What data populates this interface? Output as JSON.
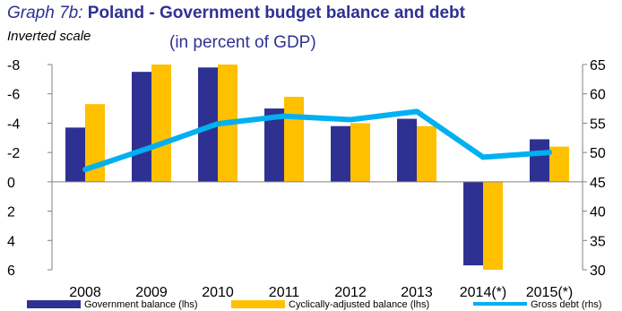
{
  "title_prefix": "Graph 7b:",
  "title_main": "Poland - Government budget balance and debt",
  "scale_note": "Inverted scale",
  "subtitle": "(in percent of GDP)",
  "chart_data": {
    "type": "bar+line",
    "categories": [
      "2008",
      "2009",
      "2010",
      "2011",
      "2012",
      "2013",
      "2014(*)",
      "2015(*)"
    ],
    "series": [
      {
        "name": "Government balance (lhs)",
        "type": "bar",
        "axis": "left",
        "color": "#2e3192",
        "values": [
          -3.7,
          -7.5,
          -7.8,
          -5.0,
          -3.8,
          -4.3,
          5.7,
          -2.9
        ]
      },
      {
        "name": "Cyclically-adjusted balance (lhs)",
        "type": "bar",
        "axis": "left",
        "color": "#ffc000",
        "values": [
          -5.3,
          -8.0,
          -8.0,
          -5.8,
          -4.0,
          -3.8,
          6.0,
          -2.4
        ]
      },
      {
        "name": "Gross debt (rhs)",
        "type": "line",
        "axis": "right",
        "color": "#00b0f0",
        "values": [
          47.1,
          50.9,
          54.9,
          56.2,
          55.6,
          57.0,
          49.2,
          50.0
        ]
      }
    ],
    "left_axis": {
      "ylim": [
        -8,
        6
      ],
      "inverted": true,
      "ticks": [
        "-8",
        "-6",
        "-4",
        "-2",
        "0",
        "2",
        "4",
        "6"
      ],
      "tick_values": [
        -8,
        -6,
        -4,
        -2,
        0,
        2,
        4,
        6
      ]
    },
    "right_axis": {
      "ylim": [
        30,
        65
      ],
      "ticks": [
        "30",
        "35",
        "40",
        "45",
        "50",
        "55",
        "60",
        "65"
      ],
      "tick_values": [
        30,
        35,
        40,
        45,
        50,
        55,
        60,
        65
      ]
    },
    "grid": false,
    "legend_position": "bottom"
  }
}
